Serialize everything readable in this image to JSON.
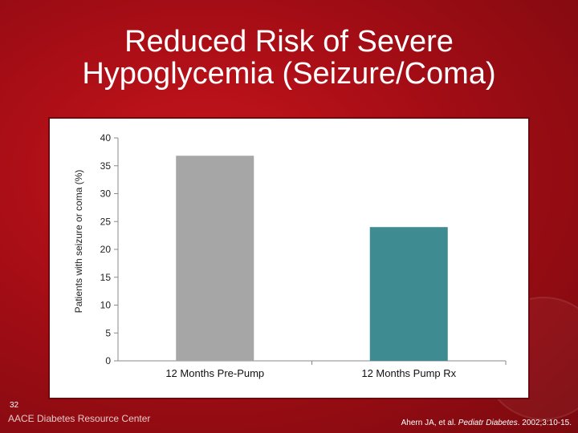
{
  "slide": {
    "title_line1": "Reduced Risk of Severe",
    "title_line2": "Hypoglycemia (Seizure/Coma)",
    "slide_number": "32",
    "footer_logo": "AACE Diabetes Resource Center",
    "citation_pre": "Ahern JA, et al. ",
    "citation_journal": "Pediatr Diabetes",
    "citation_post": ". 2002;3:10-15."
  },
  "colors": {
    "background": "#a50d15",
    "bar_pre_pump": "#a6a6a6",
    "bar_pump_rx": "#3e8b91",
    "text": "#ffffff"
  },
  "chart_data": {
    "type": "bar",
    "categories": [
      "12 Months Pre-Pump",
      "12 Months Pump Rx"
    ],
    "values": [
      36.8,
      24
    ],
    "title": "",
    "xlabel": "",
    "ylabel": "Patients with seizure or coma (%)",
    "ylim": [
      0,
      40
    ],
    "yticks": [
      0,
      5,
      10,
      15,
      20,
      25,
      30,
      35,
      40
    ],
    "grid": false,
    "legend": "none"
  }
}
